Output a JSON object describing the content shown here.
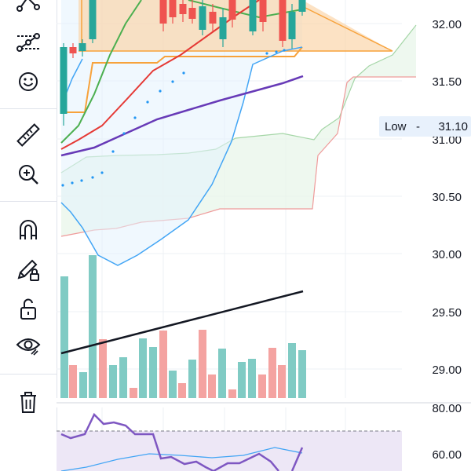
{
  "toolbar": {
    "items": [
      {
        "name": "pattern-tool-icon"
      },
      {
        "name": "forecast-tool-icon"
      },
      {
        "name": "emoji-icon"
      },
      {
        "name": "ruler-icon"
      },
      {
        "name": "zoom-in-icon"
      },
      {
        "name": "magnet-icon"
      },
      {
        "name": "pencil-lock-icon"
      },
      {
        "name": "unlock-icon"
      },
      {
        "name": "eye-icon"
      },
      {
        "name": "trash-icon"
      }
    ]
  },
  "price_axis": {
    "labels": [
      "32.00",
      "31.50",
      "31.00",
      "30.50",
      "30.00",
      "29.50",
      "29.00"
    ],
    "crosshair_label": "Low",
    "crosshair_value": "31.10"
  },
  "oscillator_axis": {
    "labels": [
      "80.00",
      "60.00"
    ]
  },
  "colors": {
    "up": "#26a69a",
    "down": "#ef5350",
    "orange": "#f7a23b",
    "purple": "#673ab7",
    "green": "#4caf50",
    "red": "#e53935",
    "blue": "#2196f3",
    "black": "#131722",
    "cloud_green": "#a5d6a7",
    "cloud_red": "#ef9a9a"
  }
}
